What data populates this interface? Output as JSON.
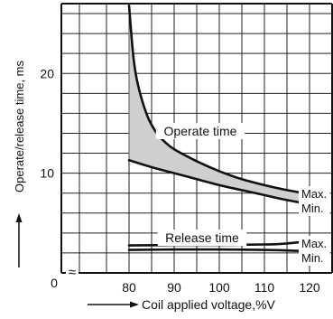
{
  "chart_data": {
    "type": "line",
    "title": "",
    "xlabel": "Coil applied voltage,%V",
    "ylabel": "Operate/release time, ms",
    "xlim": [
      65,
      125
    ],
    "ylim": [
      0,
      27
    ],
    "x_ticks": [
      80,
      85,
      90,
      95,
      100,
      105,
      110,
      115,
      120
    ],
    "x_tick_labels": [
      "80",
      "90",
      "100",
      "110",
      "120"
    ],
    "y_ticks": [
      10,
      20
    ],
    "y_tick_labels": [
      "10",
      "20"
    ],
    "origin_label": "0",
    "axis_break_symbol": "≈",
    "grid": true,
    "band_fill_color": "#cfcfcf",
    "line_color": "#111111",
    "series": [
      {
        "name": "Operate time Max.",
        "points": [
          [
            80,
            26.8
          ],
          [
            81,
            21.5
          ],
          [
            82,
            18.8
          ],
          [
            84,
            15.8
          ],
          [
            86,
            14.1
          ],
          [
            88,
            13.1
          ],
          [
            90,
            12.4
          ],
          [
            95,
            11.2
          ],
          [
            100,
            10.2
          ],
          [
            105,
            9.4
          ],
          [
            110,
            8.8
          ],
          [
            115,
            8.3
          ],
          [
            120,
            7.9
          ]
        ]
      },
      {
        "name": "Operate time Min.",
        "points": [
          [
            80,
            11.3
          ],
          [
            85,
            10.6
          ],
          [
            90,
            10.0
          ],
          [
            95,
            9.4
          ],
          [
            100,
            8.8
          ],
          [
            105,
            8.3
          ],
          [
            110,
            7.8
          ],
          [
            115,
            7.3
          ],
          [
            120,
            6.9
          ]
        ]
      },
      {
        "name": "Release time Max.",
        "points": [
          [
            80,
            2.75
          ],
          [
            90,
            2.8
          ],
          [
            100,
            2.8
          ],
          [
            110,
            2.85
          ],
          [
            115,
            2.95
          ],
          [
            120,
            3.2
          ]
        ]
      },
      {
        "name": "Release time Min.",
        "points": [
          [
            80,
            2.3
          ],
          [
            90,
            2.35
          ],
          [
            100,
            2.35
          ],
          [
            110,
            2.3
          ],
          [
            115,
            2.25
          ],
          [
            120,
            2.15
          ]
        ]
      }
    ],
    "bands": [
      {
        "upper": "Operate time Max.",
        "lower": "Operate time Min."
      }
    ],
    "annotations": {
      "operate": "Operate time",
      "release": "Release time",
      "max": "Max.",
      "min": "Min."
    }
  }
}
